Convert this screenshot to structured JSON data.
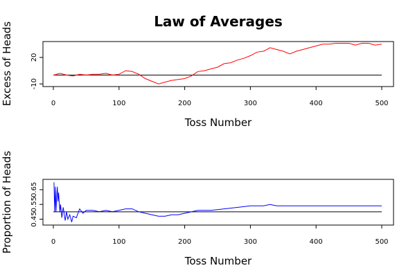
{
  "title": "Law of Averages",
  "chart_data": [
    {
      "type": "line",
      "xlabel": "Toss Number",
      "ylabel": "Excess of Heads",
      "xlim": [
        0,
        500
      ],
      "ylim": [
        -13,
        38
      ],
      "x_ticks": [
        0,
        100,
        200,
        300,
        400,
        500
      ],
      "y_ticks": [
        -10,
        20
      ],
      "reference_line": 0,
      "grid": false,
      "series_color": "#ff0000",
      "series": [
        {
          "x": [
            1,
            10,
            20,
            30,
            40,
            50,
            60,
            70,
            80,
            90,
            100,
            110,
            120,
            130,
            140,
            150,
            160,
            170,
            180,
            190,
            200,
            210,
            220,
            230,
            240,
            250,
            260,
            270,
            280,
            290,
            300,
            310,
            320,
            330,
            340,
            350,
            360,
            370,
            380,
            390,
            400,
            410,
            420,
            430,
            440,
            450,
            460,
            470,
            480,
            490,
            500
          ],
          "y": [
            0,
            2,
            0,
            -1,
            1,
            0,
            1,
            1,
            2,
            0,
            1,
            5,
            4,
            1,
            -4,
            -7,
            -10,
            -8,
            -6,
            -5,
            -4,
            -1,
            4,
            5,
            7,
            9,
            13,
            14,
            17,
            19,
            22,
            26,
            27,
            31,
            29,
            27,
            24,
            27,
            29,
            31,
            33,
            35,
            35,
            36,
            36,
            36,
            34,
            36,
            36,
            34,
            35
          ]
        }
      ]
    },
    {
      "type": "line",
      "xlabel": "Toss Number",
      "ylabel": "Proportion of Heads",
      "xlim": [
        0,
        500
      ],
      "ylim": [
        0.41,
        0.72
      ],
      "x_ticks": [
        0,
        100,
        200,
        300,
        400,
        500
      ],
      "y_ticks": [
        0.45,
        0.55,
        0.65
      ],
      "y_tick_labels": [
        "0.45",
        "0.55",
        "0.65"
      ],
      "reference_line": 0.5,
      "grid": false,
      "series_color": "#0000ff",
      "series": [
        {
          "x": [
            1,
            2,
            3,
            4,
            5,
            6,
            7,
            8,
            9,
            10,
            11,
            12,
            13,
            14,
            15,
            16,
            17,
            18,
            20,
            22,
            25,
            28,
            30,
            35,
            40,
            45,
            50,
            60,
            70,
            80,
            90,
            100,
            110,
            120,
            130,
            140,
            150,
            160,
            170,
            180,
            190,
            200,
            220,
            240,
            260,
            280,
            300,
            320,
            330,
            340,
            360,
            380,
            400,
            420,
            440,
            460,
            480,
            500
          ],
          "y": [
            0.7,
            0.5,
            0.67,
            0.5,
            0.6,
            0.67,
            0.57,
            0.63,
            0.56,
            0.5,
            0.55,
            0.5,
            0.46,
            0.5,
            0.53,
            0.5,
            0.47,
            0.44,
            0.5,
            0.45,
            0.48,
            0.43,
            0.47,
            0.46,
            0.52,
            0.49,
            0.51,
            0.51,
            0.5,
            0.51,
            0.5,
            0.51,
            0.52,
            0.52,
            0.5,
            0.49,
            0.48,
            0.47,
            0.47,
            0.48,
            0.48,
            0.49,
            0.51,
            0.51,
            0.52,
            0.53,
            0.54,
            0.54,
            0.55,
            0.54,
            0.54,
            0.54,
            0.54,
            0.54,
            0.54,
            0.54,
            0.54,
            0.54
          ]
        }
      ]
    }
  ]
}
